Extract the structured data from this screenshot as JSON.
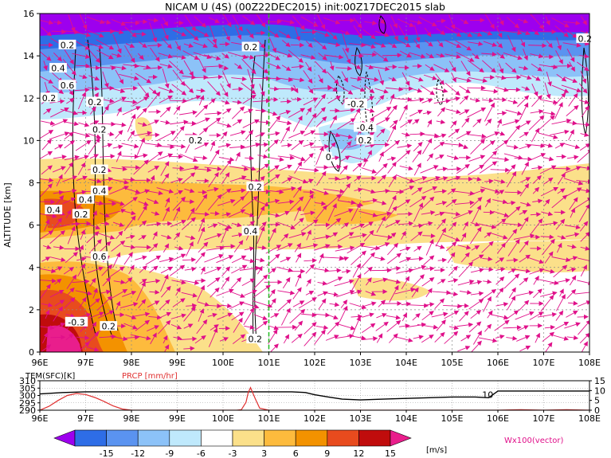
{
  "title": "NICAM U (4S) (00Z22DEC2015) init:00Z17DEC2015 slab",
  "colors": {
    "vector": "#e0108a",
    "contour": "#000000",
    "prcp_line": "#e03030",
    "tem_line": "#000000",
    "green_line": "#22bb22"
  },
  "chart_data": [
    {
      "type": "heatmap",
      "title": "NICAM U (4S) (00Z22DEC2015) init:00Z17DEC2015 slab",
      "xlabel": "",
      "ylabel": "ALTITUDE [km]",
      "xlim": [
        96,
        108
      ],
      "ylim": [
        0,
        16
      ],
      "x_ticks": [
        "96E",
        "97E",
        "98E",
        "99E",
        "100E",
        "101E",
        "102E",
        "103E",
        "104E",
        "105E",
        "106E",
        "107E",
        "108E"
      ],
      "y_ticks": [
        "0",
        "2",
        "4",
        "6",
        "8",
        "10",
        "12",
        "14",
        "16"
      ],
      "y_tick_values": [
        0,
        2,
        4,
        6,
        8,
        10,
        12,
        14,
        16
      ],
      "grid": true,
      "marker_line_x": 101,
      "contour_labels": [
        {
          "text": "0.4",
          "x": 96.4,
          "y": 13.4
        },
        {
          "text": "0.2",
          "x": 96.6,
          "y": 14.5
        },
        {
          "text": "0.6",
          "x": 96.6,
          "y": 12.6
        },
        {
          "text": "0.2",
          "x": 96.2,
          "y": 12.0
        },
        {
          "text": "0.2",
          "x": 97.2,
          "y": 11.8
        },
        {
          "text": "0.2",
          "x": 97.3,
          "y": 10.5
        },
        {
          "text": "0.2",
          "x": 97.3,
          "y": 8.6
        },
        {
          "text": "0.4",
          "x": 97.3,
          "y": 7.6
        },
        {
          "text": "0.4",
          "x": 97.0,
          "y": 7.2
        },
        {
          "text": "0.4",
          "x": 96.3,
          "y": 6.7
        },
        {
          "text": "0.2",
          "x": 96.9,
          "y": 6.5
        },
        {
          "text": "0.6",
          "x": 97.3,
          "y": 4.5
        },
        {
          "text": "0.2",
          "x": 99.4,
          "y": 10.0
        },
        {
          "text": "0.2",
          "x": 100.6,
          "y": 14.4
        },
        {
          "text": "0.2",
          "x": 100.7,
          "y": 7.8
        },
        {
          "text": "0.4",
          "x": 100.6,
          "y": 5.7
        },
        {
          "text": "0.2",
          "x": 100.7,
          "y": 0.6
        },
        {
          "text": "-0.2",
          "x": 102.9,
          "y": 11.7
        },
        {
          "text": "-0.4",
          "x": 103.1,
          "y": 10.6
        },
        {
          "text": "0.2",
          "x": 103.1,
          "y": 10.0
        },
        {
          "text": "0",
          "x": 102.3,
          "y": 9.2
        },
        {
          "text": "0.2",
          "x": 107.9,
          "y": 14.8
        },
        {
          "text": "-0.3",
          "x": 96.8,
          "y": 1.4
        },
        {
          "text": "0.2",
          "x": 97.5,
          "y": 1.2
        }
      ],
      "vector_label": "Wx100(vector)"
    },
    {
      "type": "line",
      "title": "",
      "xlim": [
        96,
        108
      ],
      "x_ticks": [
        "96E",
        "97E",
        "98E",
        "99E",
        "100E",
        "101E",
        "102E",
        "103E",
        "104E",
        "105E",
        "106E",
        "107E",
        "108E"
      ],
      "left_axis": {
        "ticks": [
          "290",
          "295",
          "300",
          "305",
          "310"
        ],
        "tick_values": [
          290,
          295,
          300,
          305,
          310
        ],
        "range": [
          290,
          310
        ]
      },
      "right_axis": {
        "ticks": [
          "0",
          "5",
          "10",
          "15"
        ],
        "tick_values": [
          0,
          5,
          10,
          15
        ],
        "range": [
          0,
          15
        ]
      },
      "series": [
        {
          "name": "TEM(SFC)[K]",
          "axis": "left",
          "x": [
            96,
            96.5,
            97,
            97.5,
            98,
            98.5,
            99,
            99.5,
            100,
            100.5,
            101,
            101.5,
            101.8,
            102,
            102.3,
            102.6,
            103,
            103.5,
            104,
            104.5,
            105,
            105.5,
            105.8,
            106,
            106.5,
            107,
            107.5,
            108
          ],
          "y": [
            301,
            302,
            302.5,
            302.5,
            302.5,
            302.5,
            302.5,
            302.5,
            302.5,
            302.5,
            302.5,
            302.5,
            302,
            300.5,
            299,
            297.5,
            297,
            297.5,
            298,
            298.5,
            299,
            299,
            298.5,
            303,
            303,
            303,
            303,
            303
          ]
        },
        {
          "name": "PRCP [mm/hr]",
          "axis": "right",
          "x": [
            96,
            96.2,
            96.4,
            96.6,
            96.8,
            97,
            97.2,
            97.4,
            97.6,
            97.8,
            98,
            98.5,
            99,
            99.5,
            100,
            100.3,
            100.4,
            100.5,
            100.55,
            100.6,
            100.7,
            100.8,
            101,
            102,
            103,
            104,
            105,
            106,
            106.5,
            107,
            107.5,
            108
          ],
          "y": [
            0,
            2,
            5,
            7.5,
            8.5,
            8,
            6.5,
            4.5,
            2.2,
            0.6,
            0,
            0,
            0,
            0,
            0,
            0,
            0.3,
            4,
            9,
            11.5,
            6,
            1,
            0,
            0,
            0,
            0,
            0,
            0,
            0.3,
            0,
            0.3,
            0
          ]
        }
      ],
      "annotation": {
        "text": "10",
        "x": 105.9,
        "y": 300.5
      },
      "grid": true
    },
    {
      "type": "colorbar",
      "levels": [
        "-15",
        "-12",
        "-9",
        "-6",
        "-3",
        "3",
        "6",
        "9",
        "12",
        "15"
      ],
      "colors": [
        "#9d00ee",
        "#2e6de6",
        "#5a93f0",
        "#8cc2f8",
        "#bfe9fc",
        "#ffffff",
        "#fbe08a",
        "#fdbb3d",
        "#f39200",
        "#e84b1e",
        "#c00c0c",
        "#e91e8c"
      ],
      "unit": "[m/s]"
    }
  ]
}
